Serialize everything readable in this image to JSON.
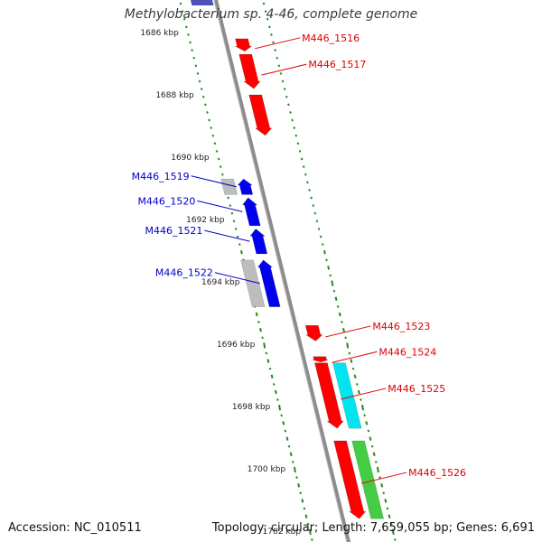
{
  "title": "Methylobacterium sp. 4-46, complete genome",
  "accession": "Accession: NC_010511",
  "topology": "Topology: circular; Length: 7,659,055 bp; Genes: 6,691",
  "colors": {
    "backbone": "#8c8c8c",
    "tick": "#1f8c1f",
    "forward_gene": "#ff0000",
    "reverse_gene": "#0000ee",
    "other_gene": "#bdbdbd",
    "feature_cyan": "#00e5ee",
    "feature_green": "#44cc44",
    "forward_label": "#e00000",
    "reverse_label": "#0000cc"
  },
  "scale": {
    "unit": "kbp",
    "labels": [
      "1686 kbp",
      "1688 kbp",
      "1690 kbp",
      "1692 kbp",
      "1694 kbp",
      "1696 kbp",
      "1698 kbp",
      "1700 kbp",
      "1702 kbp"
    ]
  },
  "forward_genes": [
    {
      "label": "M446_1516",
      "start_kbp": 1686.2,
      "end_kbp": 1686.6
    },
    {
      "label": "M446_1517",
      "start_kbp": 1686.7,
      "end_kbp": 1687.8
    },
    {
      "label": "",
      "start_kbp": 1688.0,
      "end_kbp": 1689.3
    },
    {
      "label": "M446_1523",
      "start_kbp": 1695.4,
      "end_kbp": 1695.9
    },
    {
      "label": "M446_1524",
      "start_kbp": 1696.4,
      "end_kbp": 1696.55
    },
    {
      "label": "M446_1525",
      "start_kbp": 1696.6,
      "end_kbp": 1698.7
    },
    {
      "label": "M446_1526",
      "start_kbp": 1699.1,
      "end_kbp": 1701.6
    }
  ],
  "reverse_genes": [
    {
      "label": "M446_1519",
      "start_kbp": 1690.7,
      "end_kbp": 1691.2
    },
    {
      "label": "M446_1520",
      "start_kbp": 1691.3,
      "end_kbp": 1692.2
    },
    {
      "label": "M446_1521",
      "start_kbp": 1692.3,
      "end_kbp": 1693.1
    },
    {
      "label": "M446_1522",
      "start_kbp": 1693.3,
      "end_kbp": 1694.8
    }
  ],
  "other_genes": [
    {
      "label": "",
      "start_kbp": 1690.7,
      "end_kbp": 1691.2
    },
    {
      "label": "",
      "start_kbp": 1693.3,
      "end_kbp": 1694.8
    }
  ],
  "features": [
    {
      "label": "",
      "track": "cyan",
      "start_kbp": 1696.6,
      "end_kbp": 1698.7
    },
    {
      "label": "",
      "track": "green",
      "start_kbp": 1699.1,
      "end_kbp": 1701.6
    }
  ]
}
